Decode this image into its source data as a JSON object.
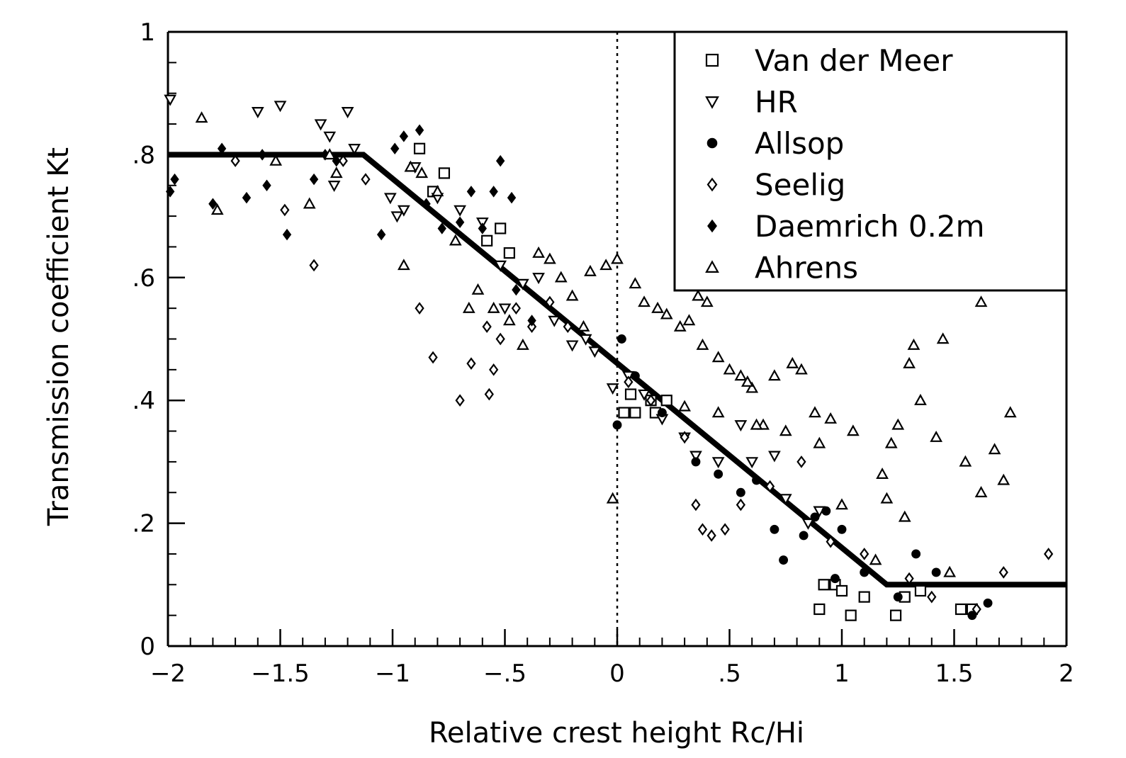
{
  "chart_data": {
    "type": "scatter",
    "xlabel": "Relative crest height Rc/Hi",
    "ylabel": "Transmission coefficient Kt",
    "xlim": [
      -2,
      2
    ],
    "ylim": [
      0,
      1
    ],
    "x_ticks": [
      {
        "value": -2,
        "label": "−2"
      },
      {
        "value": -1.5,
        "label": "−1.5"
      },
      {
        "value": -1,
        "label": "−1"
      },
      {
        "value": -0.5,
        "label": "−.5"
      },
      {
        "value": 0,
        "label": "0"
      },
      {
        "value": 0.5,
        "label": ".5"
      },
      {
        "value": 1,
        "label": "1"
      },
      {
        "value": 1.5,
        "label": "1.5"
      },
      {
        "value": 2,
        "label": "2"
      }
    ],
    "y_ticks": [
      {
        "value": 0,
        "label": "0"
      },
      {
        "value": 0.2,
        "label": ".2"
      },
      {
        "value": 0.4,
        "label": ".4"
      },
      {
        "value": 0.6,
        "label": ".6"
      },
      {
        "value": 0.8,
        "label": ".8"
      },
      {
        "value": 1,
        "label": "1"
      }
    ],
    "legend_position": "top-right",
    "vertical_reference_x": 0,
    "fit_line": {
      "x": [
        -2,
        -1.13,
        1.2,
        2
      ],
      "y": [
        0.8,
        0.8,
        0.1,
        0.1
      ]
    },
    "series": [
      {
        "name": "Van der Meer",
        "marker": "square",
        "x": [
          -0.88,
          -0.77,
          -0.82,
          -0.58,
          -0.52,
          -0.48,
          0.03,
          0.06,
          0.08,
          0.15,
          0.17,
          0.22,
          0.9,
          0.92,
          0.97,
          1.0,
          1.04,
          1.1,
          1.24,
          1.28,
          1.35,
          1.53,
          1.58
        ],
        "y": [
          0.81,
          0.77,
          0.74,
          0.66,
          0.68,
          0.64,
          0.38,
          0.41,
          0.38,
          0.4,
          0.38,
          0.4,
          0.06,
          0.1,
          0.1,
          0.09,
          0.05,
          0.08,
          0.05,
          0.08,
          0.09,
          0.06,
          0.06
        ]
      },
      {
        "name": "HR",
        "marker": "triangle-down",
        "x": [
          -1.99,
          -1.6,
          -1.5,
          -1.32,
          -1.28,
          -1.2,
          -1.17,
          -1.26,
          -1.01,
          -0.95,
          -0.98,
          -0.9,
          -0.8,
          -0.7,
          -0.6,
          -0.52,
          -0.5,
          -0.42,
          -0.35,
          -0.28,
          -0.2,
          -0.14,
          -0.1,
          -0.02,
          0.05,
          0.12,
          0.2,
          0.3,
          0.35,
          0.45,
          0.55,
          0.6,
          0.7,
          0.75,
          0.85,
          0.9
        ],
        "y": [
          0.89,
          0.87,
          0.88,
          0.85,
          0.83,
          0.87,
          0.81,
          0.75,
          0.73,
          0.71,
          0.7,
          0.78,
          0.73,
          0.71,
          0.69,
          0.62,
          0.55,
          0.59,
          0.6,
          0.53,
          0.49,
          0.5,
          0.48,
          0.42,
          0.44,
          0.41,
          0.37,
          0.34,
          0.31,
          0.3,
          0.36,
          0.3,
          0.31,
          0.24,
          0.2,
          0.22
        ]
      },
      {
        "name": "Allsop",
        "marker": "star",
        "x": [
          0.0,
          0.02,
          0.08,
          0.2,
          0.35,
          0.45,
          0.55,
          0.62,
          0.7,
          0.74,
          0.83,
          0.88,
          0.93,
          0.97,
          1.0,
          1.1,
          1.25,
          1.33,
          1.42,
          1.58,
          1.65
        ],
        "y": [
          0.36,
          0.5,
          0.44,
          0.38,
          0.3,
          0.28,
          0.25,
          0.27,
          0.19,
          0.14,
          0.18,
          0.21,
          0.22,
          0.11,
          0.19,
          0.12,
          0.08,
          0.15,
          0.12,
          0.05,
          0.07
        ]
      },
      {
        "name": "Seelig",
        "marker": "diamond",
        "x": [
          -1.7,
          -1.48,
          -1.35,
          -1.22,
          -1.12,
          -0.88,
          -0.82,
          -0.7,
          -0.65,
          -0.58,
          -0.57,
          -0.55,
          -0.52,
          -0.45,
          -0.38,
          -0.3,
          -0.22,
          0.05,
          0.15,
          0.3,
          0.35,
          0.38,
          0.42,
          0.48,
          0.55,
          0.68,
          0.82,
          0.95,
          1.1,
          1.3,
          1.4,
          1.6,
          1.72,
          1.92
        ],
        "y": [
          0.79,
          0.71,
          0.62,
          0.79,
          0.76,
          0.55,
          0.47,
          0.4,
          0.46,
          0.52,
          0.41,
          0.45,
          0.5,
          0.55,
          0.52,
          0.56,
          0.52,
          0.43,
          0.4,
          0.34,
          0.23,
          0.19,
          0.18,
          0.19,
          0.23,
          0.26,
          0.3,
          0.17,
          0.15,
          0.11,
          0.08,
          0.06,
          0.12,
          0.15
        ]
      },
      {
        "name": "Daemrich 0.2m",
        "marker": "filled-diamond",
        "x": [
          -1.99,
          -1.97,
          -1.8,
          -1.76,
          -1.65,
          -1.58,
          -1.56,
          -1.47,
          -1.35,
          -1.3,
          -1.25,
          -1.05,
          -0.99,
          -0.95,
          -0.88,
          -0.85,
          -0.78,
          -0.7,
          -0.65,
          -0.6,
          -0.55,
          -0.52,
          -0.47,
          -0.45,
          -0.38
        ],
        "y": [
          0.74,
          0.76,
          0.72,
          0.81,
          0.73,
          0.8,
          0.75,
          0.67,
          0.76,
          0.8,
          0.79,
          0.67,
          0.81,
          0.83,
          0.84,
          0.72,
          0.68,
          0.69,
          0.74,
          0.68,
          0.74,
          0.79,
          0.73,
          0.58,
          0.53
        ]
      },
      {
        "name": "Ahrens",
        "marker": "triangle-up",
        "x": [
          -1.85,
          -1.78,
          -1.52,
          -1.37,
          -1.28,
          -1.25,
          -0.95,
          -0.92,
          -0.87,
          -0.8,
          -0.72,
          -0.66,
          -0.62,
          -0.55,
          -0.48,
          -0.42,
          -0.35,
          -0.3,
          -0.25,
          -0.2,
          -0.15,
          -0.12,
          -0.05,
          0.0,
          -0.02,
          0.08,
          0.12,
          0.18,
          0.22,
          0.28,
          0.32,
          0.36,
          0.4,
          0.45,
          0.5,
          0.55,
          0.6,
          0.65,
          0.7,
          0.78,
          0.82,
          0.9,
          0.95,
          1.05,
          1.15,
          1.2,
          1.22,
          1.25,
          1.3,
          1.35,
          1.42,
          1.48,
          1.55,
          1.62,
          1.68,
          1.72,
          1.75,
          0.3,
          0.38,
          0.45,
          0.58,
          0.62,
          0.75,
          0.88,
          1.0,
          1.18,
          1.28,
          1.32,
          1.45,
          1.62
        ],
        "y": [
          0.86,
          0.71,
          0.79,
          0.72,
          0.8,
          0.77,
          0.62,
          0.78,
          0.77,
          0.74,
          0.66,
          0.55,
          0.58,
          0.55,
          0.53,
          0.49,
          0.64,
          0.63,
          0.6,
          0.57,
          0.52,
          0.61,
          0.62,
          0.63,
          0.24,
          0.59,
          0.56,
          0.55,
          0.54,
          0.52,
          0.53,
          0.57,
          0.56,
          0.47,
          0.45,
          0.44,
          0.42,
          0.36,
          0.44,
          0.46,
          0.45,
          0.33,
          0.37,
          0.35,
          0.14,
          0.24,
          0.33,
          0.36,
          0.46,
          0.4,
          0.34,
          0.12,
          0.3,
          0.25,
          0.32,
          0.27,
          0.38,
          0.39,
          0.49,
          0.38,
          0.43,
          0.36,
          0.35,
          0.38,
          0.23,
          0.28,
          0.21,
          0.49,
          0.5,
          0.56
        ]
      }
    ]
  }
}
